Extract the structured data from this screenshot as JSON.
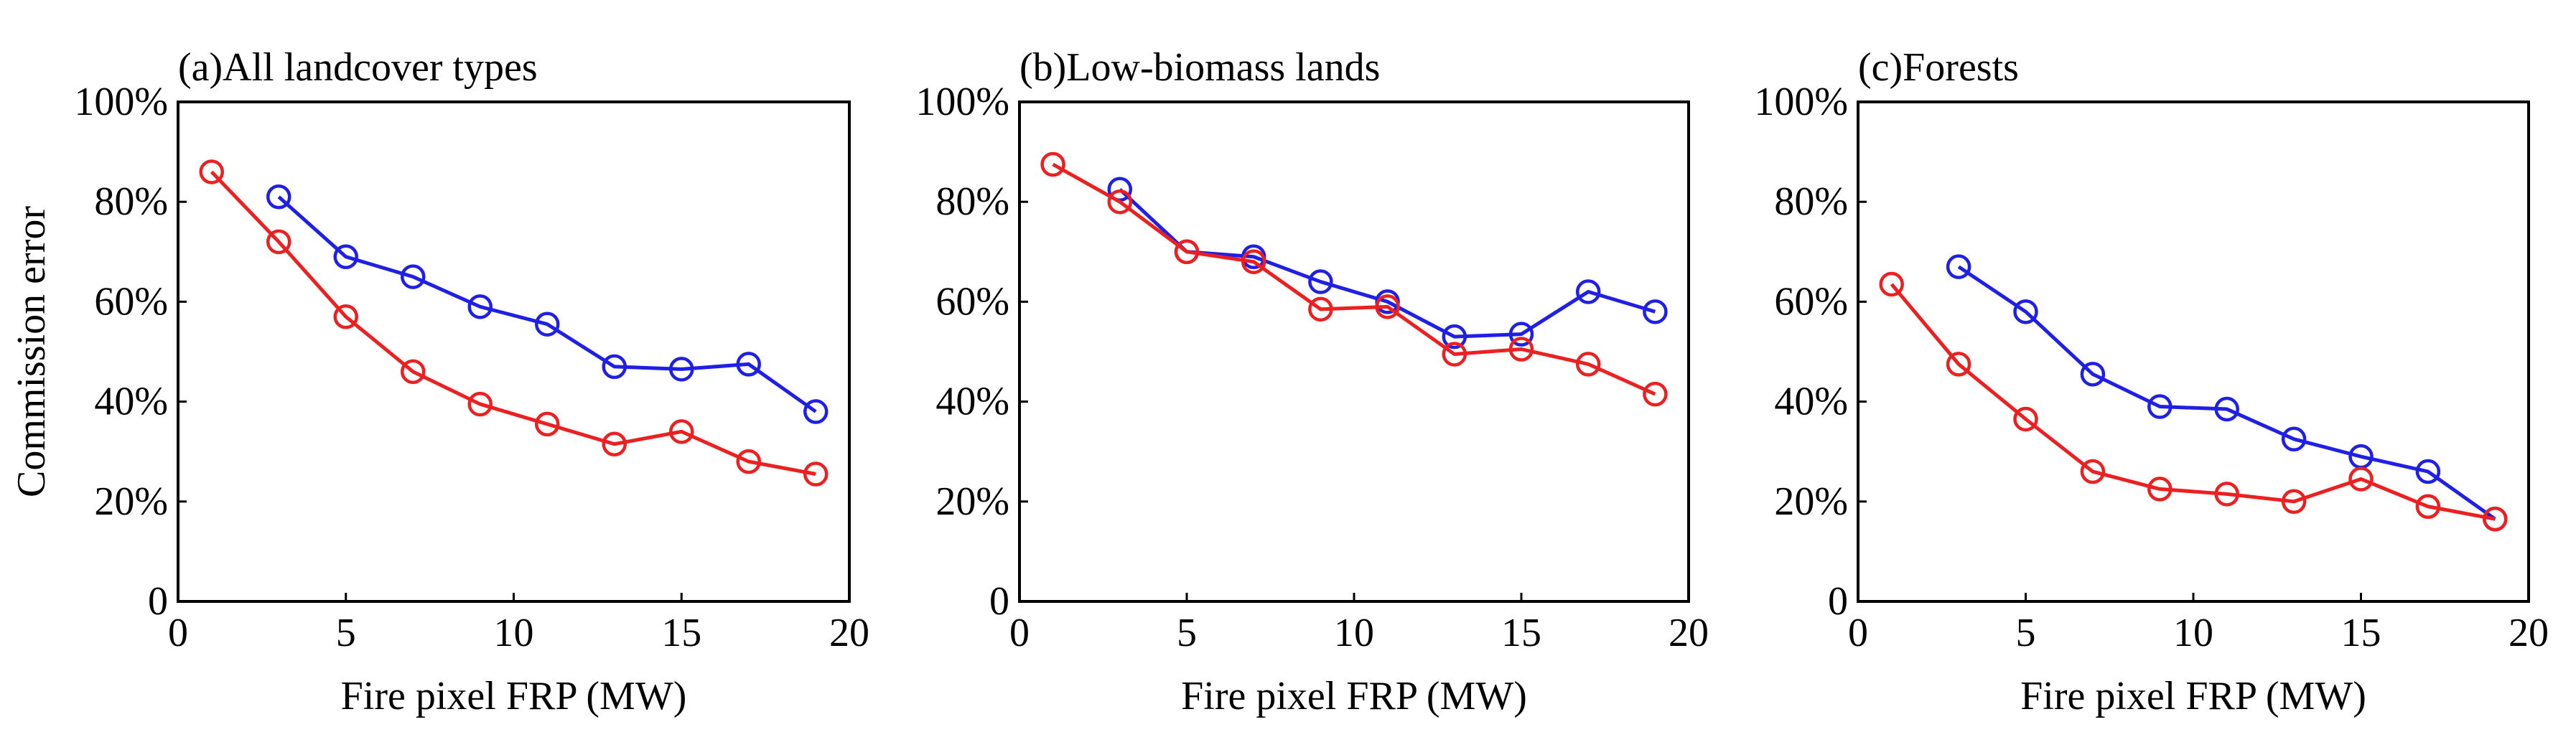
{
  "chart_data": [
    {
      "type": "line",
      "title": "(a)All landcover types",
      "xlabel": "Fire pixel FRP (MW)",
      "ylabel": "Commission error",
      "xlim": [
        0,
        20
      ],
      "ylim": [
        0,
        100
      ],
      "xticks": [
        "0",
        "5",
        "10",
        "15",
        "20"
      ],
      "yticks": [
        "0",
        "20%",
        "40%",
        "60%",
        "80%",
        "100%"
      ],
      "series": [
        {
          "name": "blue",
          "color": "#1f1fe6",
          "x": [
            3,
            5,
            7,
            9,
            11,
            13,
            15,
            17,
            19
          ],
          "y": [
            81,
            69,
            65,
            59,
            55.5,
            47,
            46.5,
            47.5,
            38
          ]
        },
        {
          "name": "red",
          "color": "#ec2020",
          "x": [
            1,
            3,
            5,
            7,
            9,
            11,
            13,
            15,
            17,
            19
          ],
          "y": [
            86,
            72,
            57,
            46,
            39.5,
            35.5,
            31.5,
            34,
            28,
            25.5
          ]
        }
      ]
    },
    {
      "type": "line",
      "title": "(b)Low-biomass lands",
      "xlabel": "Fire pixel FRP (MW)",
      "ylabel": "",
      "xlim": [
        0,
        20
      ],
      "ylim": [
        0,
        100
      ],
      "xticks": [
        "0",
        "5",
        "10",
        "15",
        "20"
      ],
      "yticks": [
        "0",
        "20%",
        "40%",
        "60%",
        "80%",
        "100%"
      ],
      "series": [
        {
          "name": "blue",
          "color": "#1f1fe6",
          "x": [
            3,
            5,
            7,
            9,
            11,
            13,
            15,
            17,
            19
          ],
          "y": [
            82.5,
            70,
            69,
            64,
            60,
            53,
            53.5,
            62,
            58
          ]
        },
        {
          "name": "red",
          "color": "#ec2020",
          "x": [
            1,
            3,
            5,
            7,
            9,
            11,
            13,
            15,
            17,
            19
          ],
          "y": [
            87.5,
            80,
            70,
            68,
            58.5,
            59,
            49.5,
            50.5,
            47.5,
            41.5
          ]
        }
      ]
    },
    {
      "type": "line",
      "title": "(c)Forests",
      "xlabel": "Fire pixel FRP (MW)",
      "ylabel": "",
      "xlim": [
        0,
        20
      ],
      "ylim": [
        0,
        100
      ],
      "xticks": [
        "0",
        "5",
        "10",
        "15",
        "20"
      ],
      "yticks": [
        "0",
        "20%",
        "40%",
        "60%",
        "80%",
        "100%"
      ],
      "series": [
        {
          "name": "blue",
          "color": "#1f1fe6",
          "x": [
            3,
            5,
            7,
            9,
            11,
            13,
            15,
            17,
            19
          ],
          "y": [
            67,
            58,
            45.5,
            39,
            38.5,
            32.5,
            29,
            26,
            16.5
          ]
        },
        {
          "name": "red",
          "color": "#ec2020",
          "x": [
            1,
            3,
            5,
            7,
            9,
            11,
            13,
            15,
            17,
            19
          ],
          "y": [
            63.5,
            47.5,
            36.5,
            26,
            22.5,
            21.5,
            20,
            24.5,
            19,
            16.5
          ]
        }
      ]
    }
  ]
}
